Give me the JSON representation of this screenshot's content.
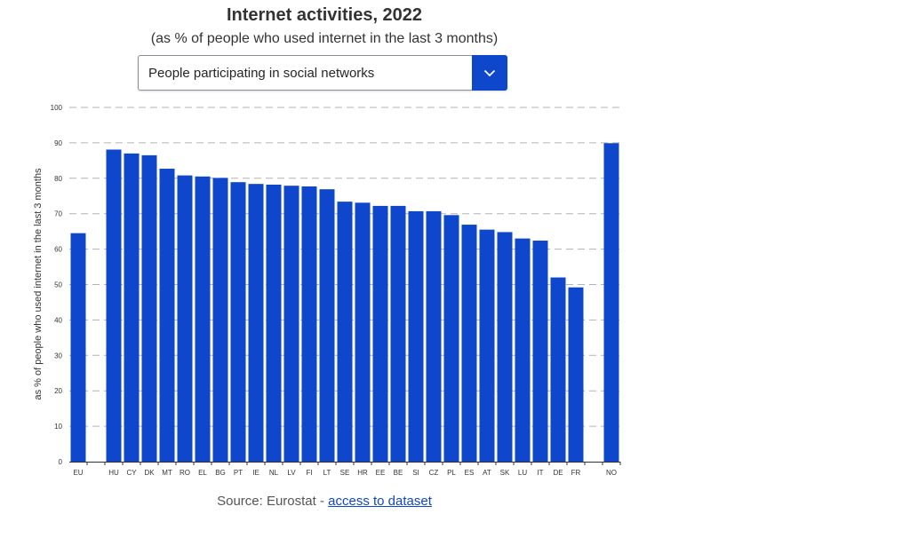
{
  "header": {
    "title": "Internet activities, 2022",
    "subtitle": "(as % of people who used internet in the last 3 months)"
  },
  "selector": {
    "selected": "People participating in social networks",
    "icon": "chevron-down-icon"
  },
  "footer": {
    "source_prefix": "Source: Eurostat - ",
    "link_label": "access to dataset"
  },
  "colors": {
    "bar": "#0e47cb",
    "accent": "#0e47cb",
    "grid": "#b3b3b3"
  },
  "chart_data": {
    "type": "bar",
    "title": "Internet activities, 2022",
    "subtitle": "(as % of people who used internet in the last 3 months)",
    "xlabel": "",
    "ylabel": "as % of people who used internet in the last 3 months",
    "ylim": [
      0,
      100
    ],
    "yticks": [
      "0",
      "10",
      "20",
      "30",
      "40",
      "50",
      "60",
      "70",
      "80",
      "90",
      "100"
    ],
    "grid": true,
    "categories": [
      "EU",
      "",
      "HU",
      "CY",
      "DK",
      "MT",
      "RO",
      "EL",
      "BG",
      "PT",
      "IE",
      "NL",
      "LV",
      "FI",
      "LT",
      "SE",
      "HR",
      "EE",
      "BE",
      "SI",
      "CZ",
      "PL",
      "ES",
      "AT",
      "SK",
      "LU",
      "IT",
      "DE",
      "FR",
      "",
      "NO"
    ],
    "values": [
      64.5,
      null,
      88.1,
      87.0,
      86.5,
      82.7,
      80.8,
      80.5,
      80.1,
      78.9,
      78.4,
      78.2,
      77.9,
      77.7,
      76.9,
      73.4,
      73.1,
      72.2,
      72.2,
      70.7,
      70.7,
      69.6,
      66.9,
      65.5,
      64.8,
      63.0,
      62.4,
      52.0,
      49.2,
      null,
      89.9
    ]
  }
}
